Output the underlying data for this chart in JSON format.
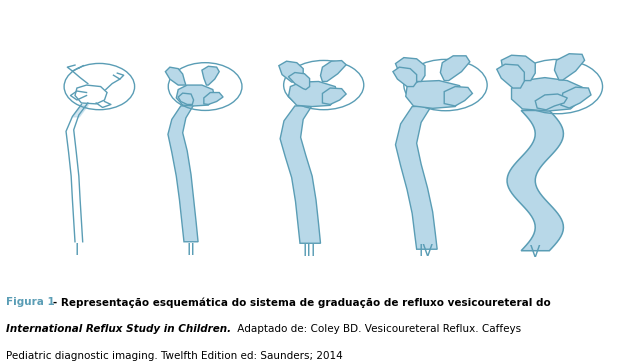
{
  "background_color": "#ffffff",
  "figure_color": "#ffffff",
  "fill_color": "#b8d8e8",
  "edge_color": "#5a9db5",
  "label_color": "#5a9db5",
  "labels": [
    "I",
    "II",
    "III",
    "IV",
    "V"
  ],
  "label_fontsize": 11,
  "caption_label": "Figura 1",
  "caption_label_color": "#5a9db5",
  "caption_bold_text": " - Representação esquemática do sistema de graduação de refluxo vesicoureteral do ",
  "caption_bold_italic": "International Reflux Study in Children.",
  "caption_normal_text": " Adaptado de: Coley BD. Vesicoureteral Reflux. Caffeys\nPediatric diagnostic imaging. Twelfth Edition ed: Saunders; 2014",
  "caption_fontsize": 7.5,
  "figsize": [
    6.41,
    3.64
  ],
  "dpi": 100
}
